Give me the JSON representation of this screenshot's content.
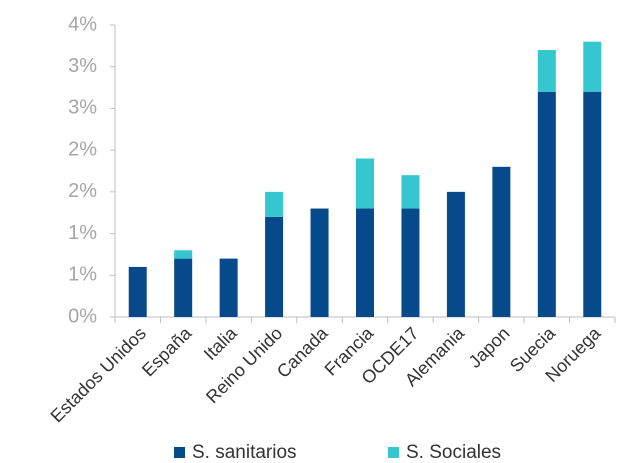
{
  "chart_data": {
    "type": "stacked-bar",
    "categories": [
      "Estados Unidos",
      "España",
      "Italia",
      "Reino Unido",
      "Canada",
      "Francia",
      "OCDE17",
      "Alemania",
      "Japon",
      "Suecia",
      "Noruega"
    ],
    "series": [
      {
        "name": "S. sanitarios",
        "color": "#074a8c",
        "values": [
          0.6,
          0.7,
          0.7,
          1.2,
          1.3,
          1.3,
          1.3,
          1.5,
          1.8,
          2.7,
          2.7
        ]
      },
      {
        "name": "S. Sociales",
        "color": "#36c6d0",
        "values": [
          null,
          0.1,
          null,
          0.3,
          null,
          0.6,
          0.4,
          null,
          null,
          0.5,
          0.6
        ]
      }
    ],
    "ylim": [
      0,
      3.5
    ],
    "yticks": [
      {
        "value": 0,
        "label": "0%"
      },
      {
        "value": 0.5,
        "label": "1%"
      },
      {
        "value": 1,
        "label": "1%"
      },
      {
        "value": 1.5,
        "label": "2%"
      },
      {
        "value": 2,
        "label": "2%"
      },
      {
        "value": 2.5,
        "label": "3%"
      },
      {
        "value": 3,
        "label": "3%"
      },
      {
        "value": 3.5,
        "label": "4%"
      }
    ],
    "grid": false,
    "legend": "bottom"
  }
}
